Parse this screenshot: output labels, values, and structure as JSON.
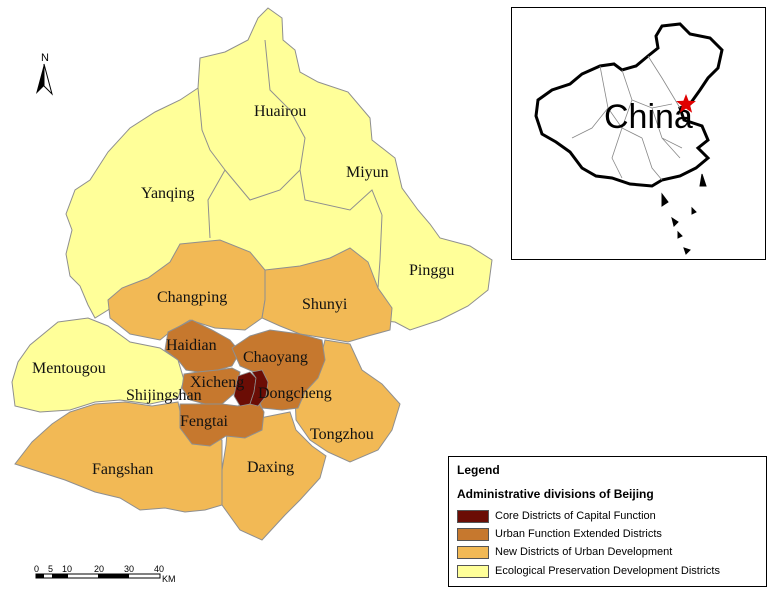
{
  "map": {
    "districts": [
      {
        "name": "Huairou",
        "category": "ecological"
      },
      {
        "name": "Yanqing",
        "category": "ecological"
      },
      {
        "name": "Miyun",
        "category": "ecological"
      },
      {
        "name": "Pinggu",
        "category": "ecological"
      },
      {
        "name": "Mentougou",
        "category": "ecological"
      },
      {
        "name": "Changping",
        "category": "new"
      },
      {
        "name": "Shunyi",
        "category": "new"
      },
      {
        "name": "Haidian",
        "category": "extended"
      },
      {
        "name": "Chaoyang",
        "category": "extended"
      },
      {
        "name": "Xicheng",
        "category": "core"
      },
      {
        "name": "Dongcheng",
        "category": "core"
      },
      {
        "name": "Shijingshan",
        "category": "extended"
      },
      {
        "name": "Fengtai",
        "category": "extended"
      },
      {
        "name": "Tongzhou",
        "category": "new"
      },
      {
        "name": "Fangshan",
        "category": "new"
      },
      {
        "name": "Daxing",
        "category": "new"
      }
    ],
    "colors": {
      "core": "#6b0d05",
      "extended": "#c6782e",
      "new": "#f2b955",
      "ecological": "#ffff99",
      "boundary": "#8f8f8f",
      "star": "#e00000"
    }
  },
  "north_arrow": {
    "label": "N"
  },
  "scalebar": {
    "ticks": [
      "0",
      "5",
      "10",
      "20",
      "30",
      "40"
    ],
    "unit": "KM"
  },
  "inset": {
    "label": "China",
    "marker": "star-icon"
  },
  "legend": {
    "title": "Legend",
    "subtitle": "Administrative divisions of Beijing",
    "items": [
      {
        "label": "Core Districts of Capital Function",
        "color": "#6b0d05"
      },
      {
        "label": "Urban Function Extended Districts",
        "color": "#c6782e"
      },
      {
        "label": "New Districts of Urban Development",
        "color": "#f2b955"
      },
      {
        "label": "Ecological Preservation Development Districts",
        "color": "#ffff99"
      }
    ]
  }
}
